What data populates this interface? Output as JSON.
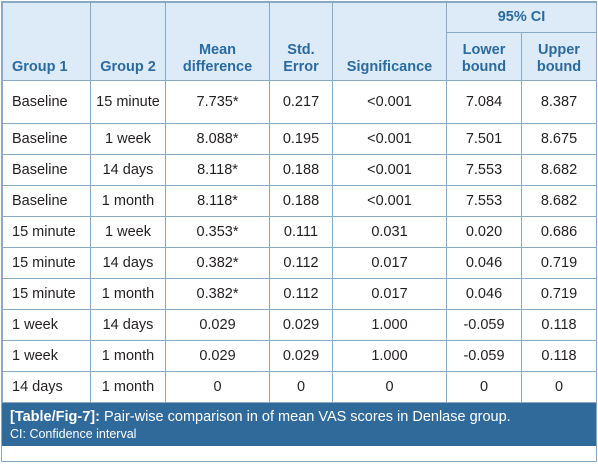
{
  "table": {
    "headers": {
      "group1": "Group 1",
      "group2": "Group 2",
      "mean_difference": "Mean difference",
      "std_error": "Std. Error",
      "significance": "Significance",
      "ci": "95% CI",
      "lower_bound": "Lower bound",
      "upper_bound": "Upper bound"
    },
    "rows": [
      [
        "Baseline",
        "15 minute",
        "7.735*",
        "0.217",
        "<0.001",
        "7.084",
        "8.387"
      ],
      [
        "Baseline",
        "1 week",
        "8.088*",
        "0.195",
        "<0.001",
        "7.501",
        "8.675"
      ],
      [
        "Baseline",
        "14 days",
        "8.118*",
        "0.188",
        "<0.001",
        "7.553",
        "8.682"
      ],
      [
        "Baseline",
        "1 month",
        "8.118*",
        "0.188",
        "<0.001",
        "7.553",
        "8.682"
      ],
      [
        "15 minute",
        "1 week",
        "0.353*",
        "0.111",
        "0.031",
        "0.020",
        "0.686"
      ],
      [
        "15 minute",
        "14 days",
        "0.382*",
        "0.112",
        "0.017",
        "0.046",
        "0.719"
      ],
      [
        "15 minute",
        "1 month",
        "0.382*",
        "0.112",
        "0.017",
        "0.046",
        "0.719"
      ],
      [
        "1 week",
        "14 days",
        "0.029",
        "0.029",
        "1.000",
        "-0.059",
        "0.118"
      ],
      [
        "1 week",
        "1 month",
        "0.029",
        "0.029",
        "1.000",
        "-0.059",
        "0.118"
      ],
      [
        "14 days",
        "1 month",
        "0",
        "0",
        "0",
        "0",
        "0"
      ]
    ]
  },
  "caption": {
    "tag": "[Table/Fig-7]:",
    "text": " Pair-wise comparison in of mean VAS scores in Denlase group.",
    "note": "CI: Confidence interval"
  },
  "colors": {
    "header_bg": "#dcebf7",
    "header_text": "#2a6a9e",
    "border": "#8aa9c6",
    "caption_bg": "#2f6a9b",
    "caption_text": "#ffffff"
  }
}
